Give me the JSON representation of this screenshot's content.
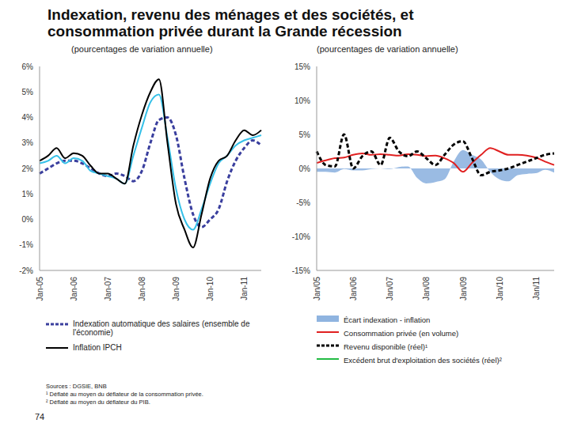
{
  "title": "Indexation, revenu des ménages et des sociétés, et consommation privée durant la Grande récession",
  "chart_data": [
    {
      "type": "line",
      "subtitle": "(pourcentages de variation annuelle)",
      "categories": [
        "Jan-05",
        null,
        null,
        null,
        "Jan-06",
        null,
        null,
        null,
        "Jan-07",
        null,
        null,
        null,
        "Jan-08",
        null,
        null,
        null,
        "Jan-09",
        null,
        null,
        null,
        "Jan-10",
        null,
        null,
        null,
        "Jan-11",
        null,
        null
      ],
      "ylim": [
        -2,
        6
      ],
      "yticks": [
        {
          "value": -2,
          "label": "-2%"
        },
        {
          "value": -1,
          "label": "-1%"
        },
        {
          "value": 0,
          "label": "0%"
        },
        {
          "value": 1,
          "label": "1%"
        },
        {
          "value": 2,
          "label": "2%"
        },
        {
          "value": 3,
          "label": "3%"
        },
        {
          "value": 4,
          "label": "4%"
        },
        {
          "value": 5,
          "label": "5%"
        },
        {
          "value": 6,
          "label": "6%"
        }
      ],
      "series": [
        {
          "name": "Indexation automatique des salaires (ensemble de l'économie)",
          "color": "#3a3f9e",
          "line_style": "dashed",
          "values": [
            1.8,
            2.0,
            2.2,
            2.3,
            2.3,
            2.2,
            2.0,
            1.8,
            1.7,
            1.8,
            1.7,
            1.5,
            1.9,
            3.0,
            3.9,
            4.0,
            3.3,
            1.6,
            0.2,
            -0.3,
            0.0,
            0.4,
            1.5,
            2.3,
            2.8,
            3.1,
            2.9
          ]
        },
        {
          "color": "#35c0e8",
          "values": [
            2.2,
            2.3,
            2.5,
            2.2,
            2.4,
            2.3,
            1.9,
            1.8,
            1.7,
            1.6,
            1.4,
            2.5,
            3.6,
            4.6,
            4.9,
            3.2,
            1.2,
            0.0,
            -0.4,
            0.4,
            1.4,
            2.2,
            2.5,
            2.9,
            3.1,
            3.2,
            3.3
          ]
        },
        {
          "name": "Inflation IPCH",
          "color": "#000000",
          "values": [
            2.3,
            2.5,
            2.8,
            2.4,
            2.6,
            2.5,
            2.1,
            1.8,
            1.8,
            1.6,
            1.4,
            2.9,
            4.1,
            5.0,
            5.5,
            3.0,
            0.6,
            -0.4,
            -1.1,
            0.2,
            1.6,
            2.3,
            2.5,
            3.1,
            3.5,
            3.3,
            3.5
          ]
        }
      ]
    },
    {
      "type": "line",
      "subtitle": "(pourcentages de variation annuelle)",
      "categories": [
        "Jan/05",
        null,
        null,
        null,
        "Jan/06",
        null,
        null,
        null,
        "Jan/07",
        null,
        null,
        null,
        "Jan/08",
        null,
        null,
        null,
        "Jan/09",
        null,
        null,
        null,
        "Jan/10",
        null,
        null,
        null,
        "Jan/11",
        null,
        null
      ],
      "ylim": [
        -15,
        15
      ],
      "yticks": [
        {
          "value": -15,
          "label": "-15%"
        },
        {
          "value": -10,
          "label": "-10%"
        },
        {
          "value": -5,
          "label": "-5%"
        },
        {
          "value": 0,
          "label": "0%"
        },
        {
          "value": 5,
          "label": "5%"
        },
        {
          "value": 10,
          "label": "10%"
        },
        {
          "value": 15,
          "label": "15%"
        }
      ],
      "series": [
        {
          "name": "Écart indexation - inflation",
          "type": "area",
          "color": "#8fb4e0",
          "values": [
            -0.5,
            -0.5,
            -0.6,
            -0.1,
            -0.3,
            -0.3,
            -0.1,
            0.0,
            -0.1,
            0.2,
            0.3,
            -1.4,
            -2.2,
            -2.0,
            -1.6,
            1.0,
            2.7,
            2.0,
            1.3,
            -0.5,
            -1.6,
            -1.9,
            -1.0,
            -0.8,
            -0.7,
            -0.2,
            -0.6
          ]
        },
        {
          "name": "Consommation privée (en volume)",
          "color": "#e02020",
          "values": [
            0.8,
            1.2,
            1.5,
            1.6,
            2.0,
            2.2,
            2.0,
            2.1,
            2.0,
            1.9,
            2.1,
            2.0,
            1.8,
            1.9,
            1.5,
            0.8,
            -0.5,
            0.8,
            2.0,
            3.0,
            2.5,
            2.0,
            2.0,
            1.9,
            1.6,
            1.0,
            0.5
          ]
        },
        {
          "name": "Revenu disponible (réel)¹",
          "color": "#000000",
          "line_style": "dashed",
          "values": [
            2.5,
            0.5,
            0.3,
            5.0,
            0.0,
            1.8,
            2.5,
            0.5,
            4.5,
            2.5,
            1.8,
            2.5,
            1.5,
            0.5,
            2.0,
            3.5,
            4.0,
            1.5,
            -1.0,
            -0.5,
            -0.3,
            0.0,
            0.5,
            1.0,
            1.5,
            2.0,
            2.2
          ]
        },
        {
          "name": "Excédent brut d'exploitation des sociétés (réel)²",
          "color": "#22bb44",
          "values": [
            null,
            null,
            null,
            null,
            null,
            null,
            null,
            null,
            null,
            null,
            null,
            null,
            null,
            null,
            null,
            null,
            null,
            null,
            null,
            null,
            null,
            null,
            null,
            null,
            null,
            null,
            null
          ]
        }
      ]
    }
  ],
  "notes": {
    "sources": "Sources : DGSIE, BNB",
    "footnotes": [
      "¹ Déflaté au moyen du déflateur de la consommation privée.",
      "² Déflaté au moyen du déflateur du PIB."
    ],
    "page": "74"
  }
}
